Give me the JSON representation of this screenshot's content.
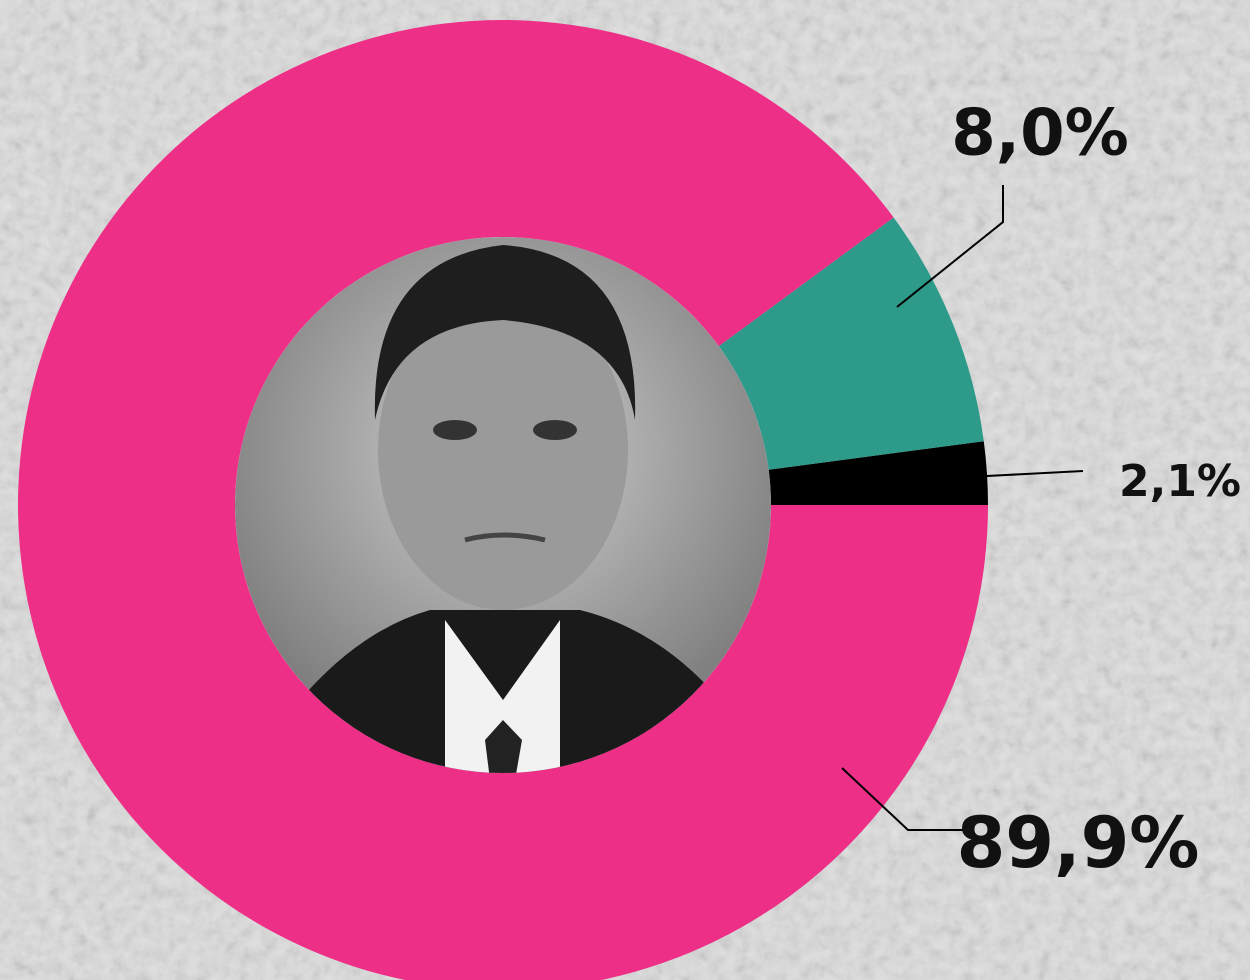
{
  "chart_data": {
    "type": "donut",
    "values": [
      2.1,
      8.0,
      89.9
    ],
    "value_labels": [
      "2,1%",
      "8,0%",
      "89,9%"
    ],
    "colors": [
      "#000000",
      "#2e9a8a",
      "#ee2f88"
    ]
  }
}
